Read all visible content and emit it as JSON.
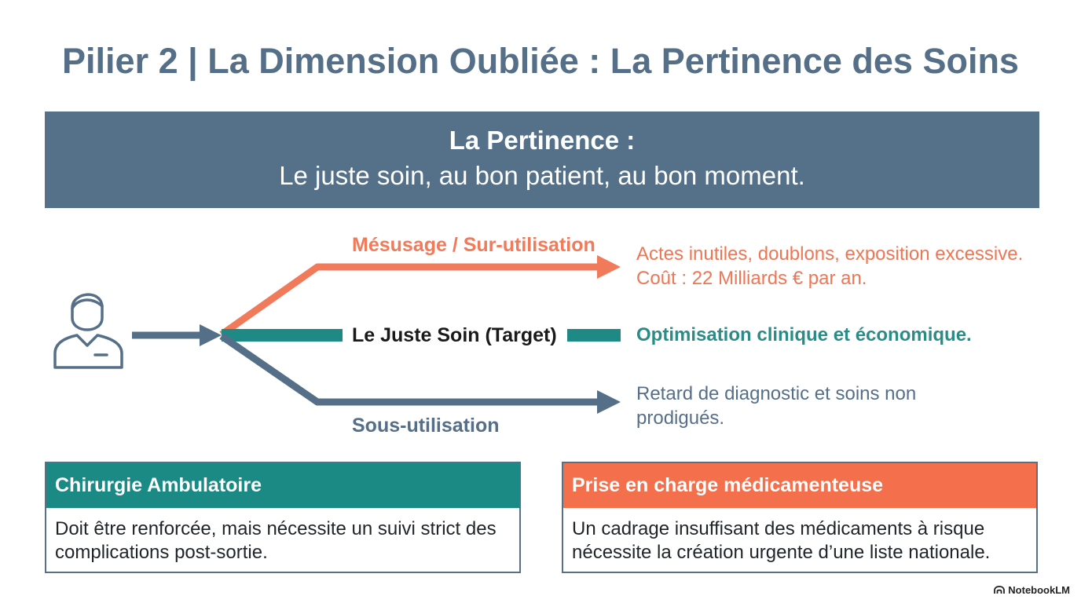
{
  "title": "Pilier 2 | La Dimension Oubliée : La Pertinence des Soins",
  "banner": {
    "heading": "La Pertinence :",
    "subheading": "Le juste soin, au bon patient, au bon moment."
  },
  "flow": {
    "source_icon": "person-icon",
    "over_label": "Mésusage / Sur-utilisation",
    "target_label": "Le Juste Soin (Target)",
    "under_label": "Sous-utilisation",
    "colors": {
      "over": "#f07a5a",
      "target": "#1f8a85",
      "under": "#566f88"
    }
  },
  "outcomes": {
    "over_line1": "Actes inutiles, doublons, exposition excessive.",
    "over_line2": "Coût : 22 Milliards € par an.",
    "target": "Optimisation clinique et économique.",
    "under": "Retard de diagnostic et soins non prodigués."
  },
  "cards": {
    "left": {
      "title": "Chirurgie Ambulatoire",
      "body": "Doit être renforcée, mais nécessite un suivi strict des complications post-sortie."
    },
    "right": {
      "title": "Prise en charge médicamenteuse",
      "body": "Un cadrage insuffisant des médicaments à risque nécessite la création urgente d’une liste nationale."
    }
  },
  "brand": {
    "icon": "notebooklm-logo-icon",
    "name": "NotebookLM"
  }
}
